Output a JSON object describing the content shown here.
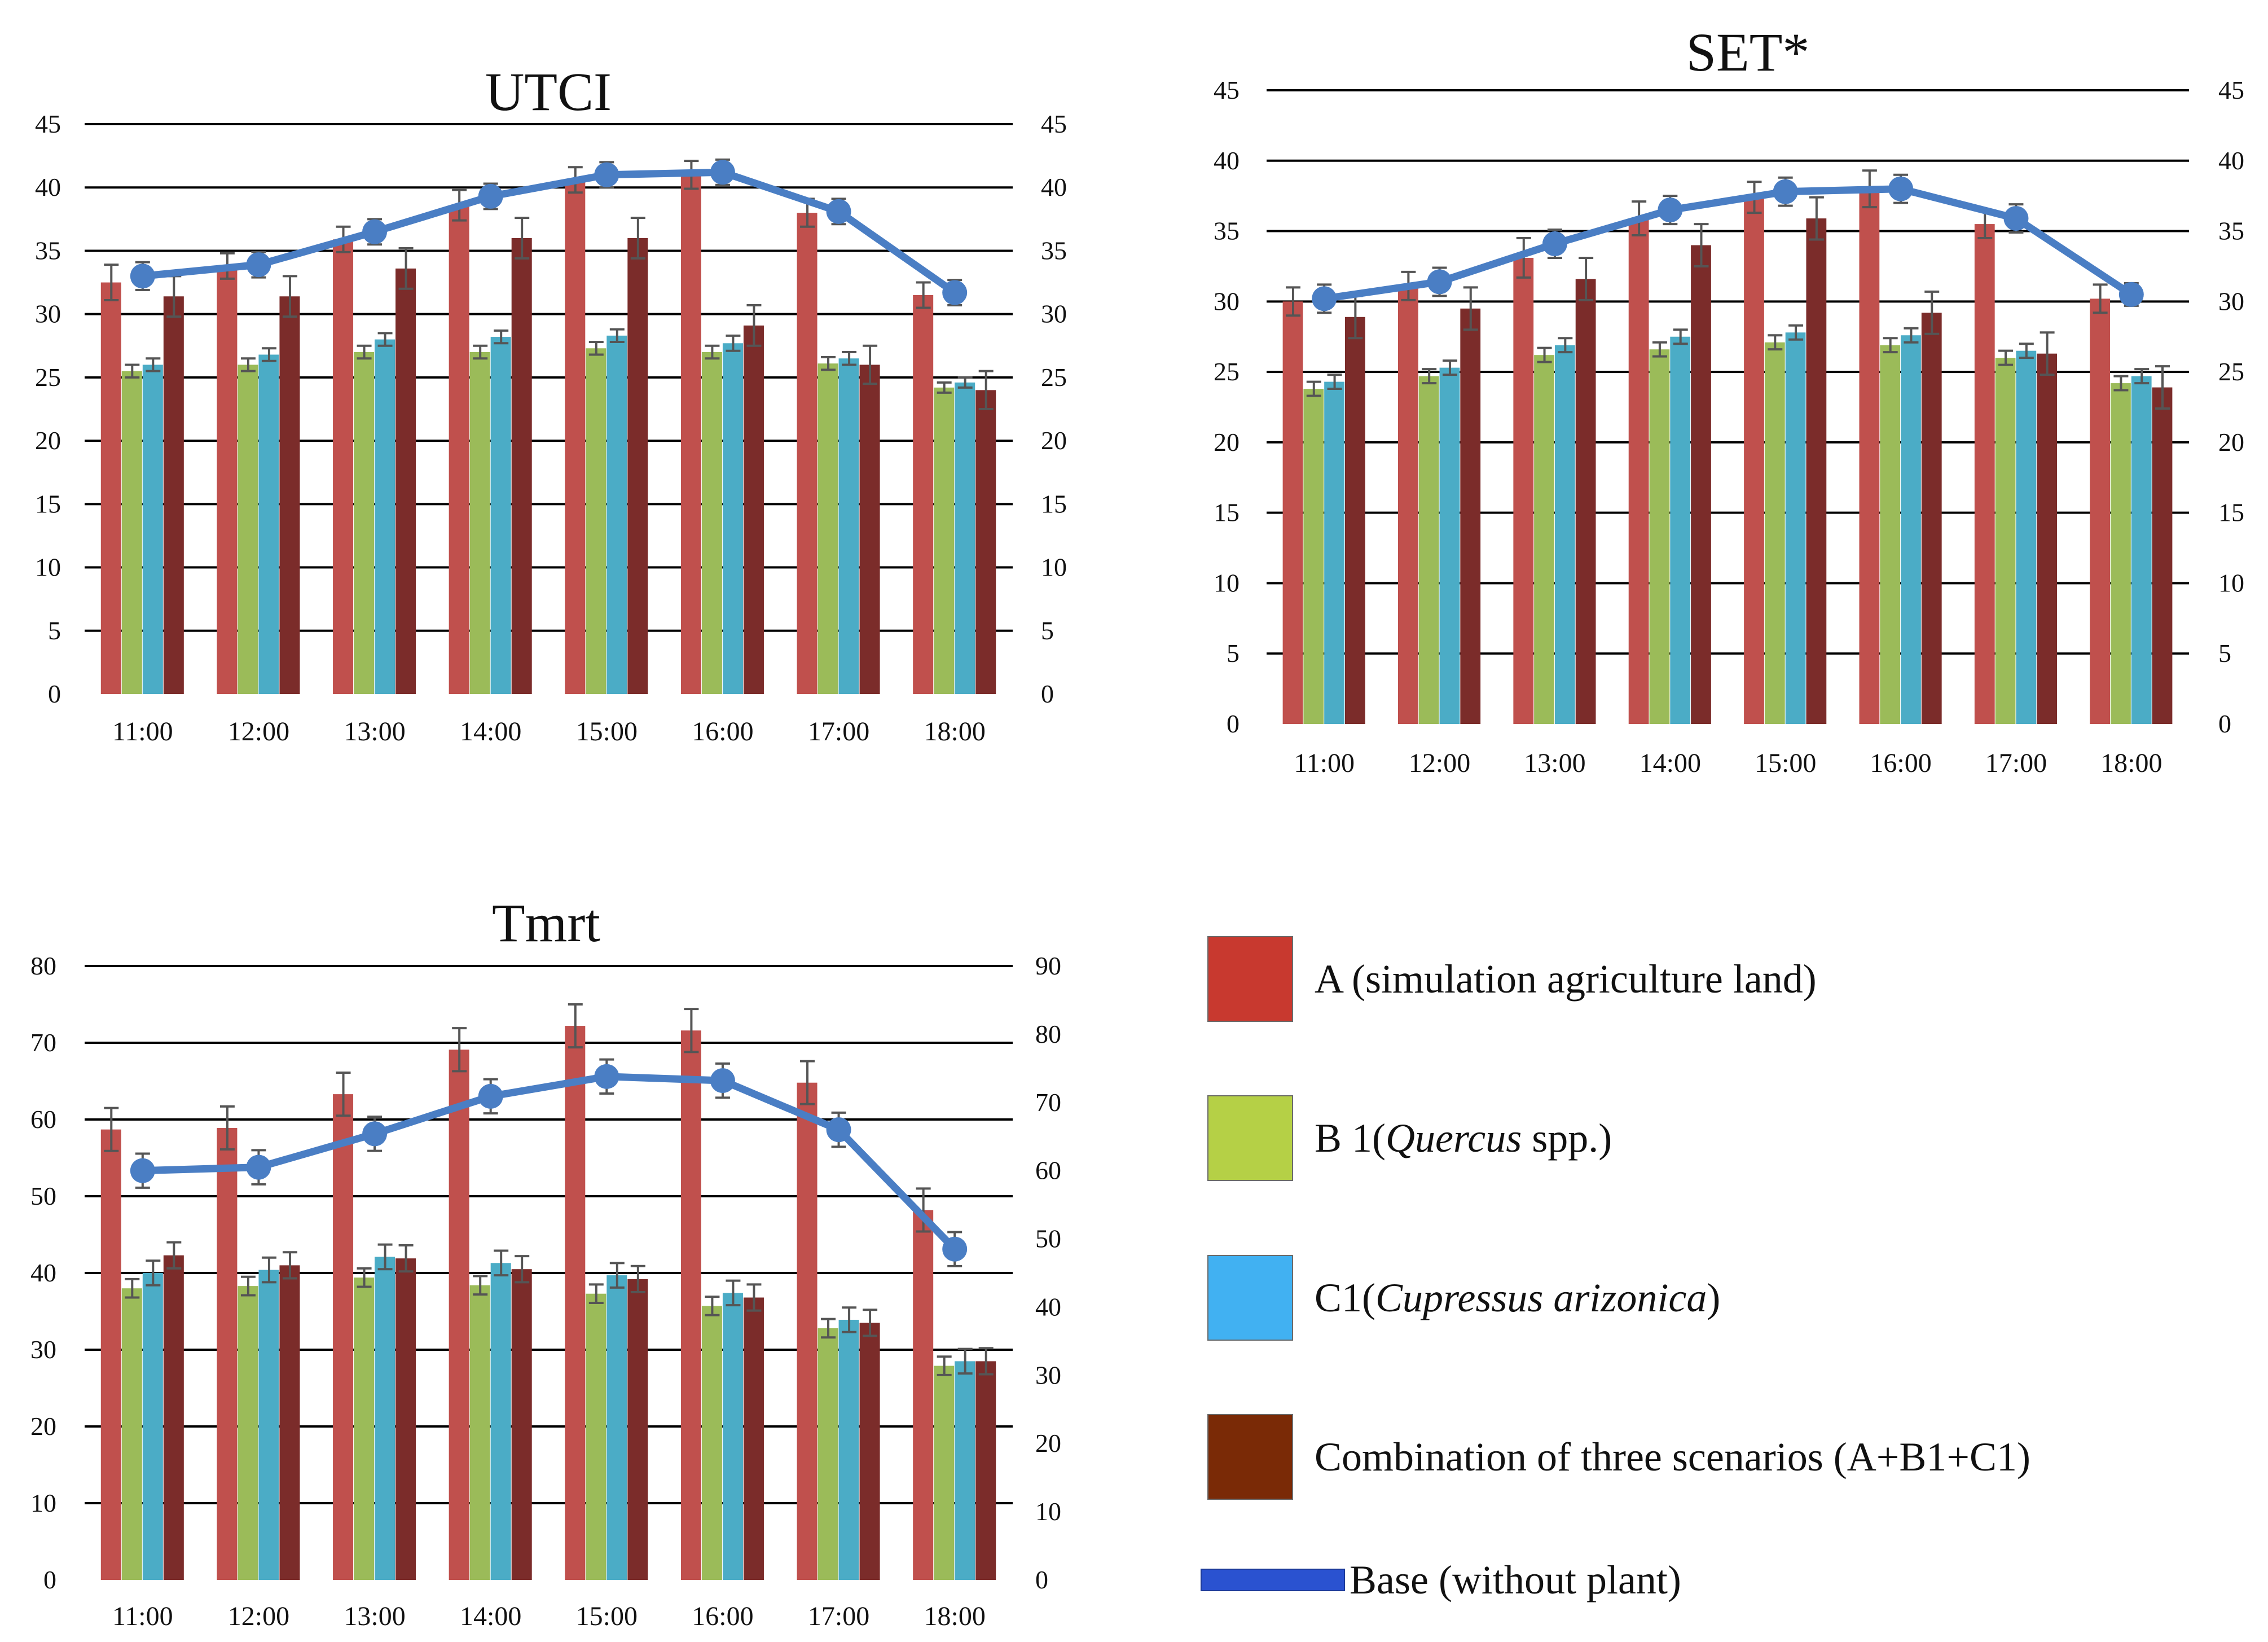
{
  "colors": {
    "A": "#c0504d",
    "B1": "#9bbb59",
    "C1": "#4bacc6",
    "comb": "#7b2c2a",
    "base": "#4a7ec4",
    "legend_A": "#c8392f",
    "legend_B1": "#b5d046",
    "legend_C1": "#41b1f2",
    "legend_comb": "#7a2a06",
    "legend_base": "#2a52d0",
    "err": "#555555",
    "grid": "#000000"
  },
  "chart_data": [
    {
      "id": "utci",
      "type": "bar",
      "title": "UTCI",
      "categories": [
        "11:00",
        "12:00",
        "13:00",
        "14:00",
        "15:00",
        "16:00",
        "17:00",
        "18:00"
      ],
      "ylim_left": [
        0,
        45
      ],
      "ylim_right": [
        0,
        45
      ],
      "yticks_left": [
        "0",
        "5",
        "10",
        "15",
        "20",
        "25",
        "30",
        "35",
        "40",
        "45"
      ],
      "yticks_right": [
        "0",
        "5",
        "10",
        "15",
        "20",
        "25",
        "30",
        "35",
        "40",
        "45"
      ],
      "series": [
        {
          "key": "A",
          "name": "A (simulation agriculture land)",
          "values": [
            32.5,
            33.8,
            35.9,
            38.6,
            40.6,
            41.0,
            38.0,
            31.5
          ],
          "err": [
            1.4,
            1.0,
            1.0,
            1.2,
            1.0,
            1.1,
            1.1,
            1.0
          ]
        },
        {
          "key": "B1",
          "name": "B 1(Quercus spp.)",
          "values": [
            25.5,
            26.0,
            27.0,
            27.0,
            27.3,
            27.0,
            26.1,
            24.2
          ],
          "err": [
            0.5,
            0.5,
            0.5,
            0.5,
            0.5,
            0.5,
            0.5,
            0.4
          ]
        },
        {
          "key": "C1",
          "name": "C1(Cupressus arizonica)",
          "values": [
            26.0,
            26.8,
            28.0,
            28.2,
            28.3,
            27.7,
            26.5,
            24.6
          ],
          "err": [
            0.5,
            0.5,
            0.5,
            0.5,
            0.5,
            0.6,
            0.5,
            0.4
          ]
        },
        {
          "key": "comb",
          "name": "Combination of three scenarios (A+B1+C1)",
          "values": [
            31.4,
            31.4,
            33.6,
            36.0,
            36.0,
            29.1,
            26.0,
            24.0
          ],
          "err": [
            1.6,
            1.6,
            1.6,
            1.6,
            1.6,
            1.6,
            1.5,
            1.5
          ]
        }
      ],
      "line": {
        "key": "base",
        "name": "Base (without plant)",
        "values": [
          33.0,
          33.9,
          36.5,
          39.3,
          41.0,
          41.2,
          38.1,
          31.7
        ],
        "err": [
          1.1,
          1.0,
          1.0,
          1.0,
          1.0,
          1.0,
          1.0,
          1.0
        ]
      }
    },
    {
      "id": "set",
      "type": "bar",
      "title": "SET*",
      "categories": [
        "11:00",
        "12:00",
        "13:00",
        "14:00",
        "15:00",
        "16:00",
        "17:00",
        "18:00"
      ],
      "ylim_left": [
        0,
        45
      ],
      "ylim_right": [
        0,
        45
      ],
      "yticks_left": [
        "0",
        "5",
        "10",
        "15",
        "20",
        "25",
        "30",
        "35",
        "40",
        "45"
      ],
      "yticks_right": [
        "0",
        "5",
        "10",
        "15",
        "20",
        "25",
        "30",
        "35",
        "40",
        "45"
      ],
      "series": [
        {
          "key": "A",
          "name": "A (simulation agriculture land)",
          "values": [
            30.0,
            31.1,
            33.1,
            35.9,
            37.4,
            38.0,
            35.5,
            30.2
          ],
          "err": [
            1.0,
            1.0,
            1.4,
            1.2,
            1.1,
            1.3,
            1.0,
            1.0
          ]
        },
        {
          "key": "B1",
          "name": "B 1(Quercus spp.)",
          "values": [
            23.8,
            24.7,
            26.2,
            26.6,
            27.1,
            26.9,
            26.0,
            24.2
          ],
          "err": [
            0.5,
            0.5,
            0.5,
            0.5,
            0.5,
            0.5,
            0.5,
            0.5
          ]
        },
        {
          "key": "C1",
          "name": "C1(Cupressus arizonica)",
          "values": [
            24.3,
            25.3,
            26.9,
            27.5,
            27.8,
            27.6,
            26.5,
            24.7
          ],
          "err": [
            0.5,
            0.5,
            0.5,
            0.5,
            0.5,
            0.5,
            0.5,
            0.5
          ]
        },
        {
          "key": "comb",
          "name": "Combination of three scenarios (A+B1+C1)",
          "values": [
            28.9,
            29.5,
            31.6,
            34.0,
            35.9,
            29.2,
            26.3,
            23.9
          ],
          "err": [
            1.5,
            1.5,
            1.5,
            1.5,
            1.5,
            1.5,
            1.5,
            1.5
          ]
        }
      ],
      "line": {
        "key": "base",
        "name": "Base (without plant)",
        "values": [
          30.2,
          31.4,
          34.1,
          36.5,
          37.8,
          38.0,
          35.9,
          30.5
        ],
        "err": [
          1.0,
          1.0,
          1.0,
          1.0,
          1.0,
          1.0,
          1.0,
          0.8
        ]
      }
    },
    {
      "id": "tmrt",
      "type": "bar",
      "title": "Tmrt",
      "categories": [
        "11:00",
        "12:00",
        "13:00",
        "14:00",
        "15:00",
        "16:00",
        "17:00",
        "18:00"
      ],
      "ylim_left": [
        0,
        80
      ],
      "ylim_right": [
        0,
        90
      ],
      "yticks_left": [
        "0",
        "10",
        "20",
        "30",
        "40",
        "50",
        "60",
        "70",
        "80"
      ],
      "yticks_right": [
        "0",
        "10",
        "20",
        "30",
        "40",
        "50",
        "60",
        "70",
        "80",
        "90"
      ],
      "series": [
        {
          "key": "A",
          "name": "A (simulation agriculture land)",
          "values": [
            58.7,
            58.9,
            63.3,
            69.1,
            72.2,
            71.6,
            64.8,
            48.2
          ],
          "err": [
            2.8,
            2.8,
            2.8,
            2.8,
            2.8,
            2.8,
            2.8,
            2.8
          ]
        },
        {
          "key": "B1",
          "name": "B 1(Quercus spp.)",
          "values": [
            38.0,
            38.3,
            39.4,
            38.4,
            37.3,
            35.7,
            32.8,
            27.9
          ],
          "err": [
            1.2,
            1.2,
            1.2,
            1.2,
            1.2,
            1.2,
            1.2,
            1.2
          ]
        },
        {
          "key": "C1",
          "name": "C1(Cupressus arizonica)",
          "values": [
            40.0,
            40.4,
            42.1,
            41.3,
            39.7,
            37.4,
            33.9,
            28.5
          ],
          "err": [
            1.6,
            1.6,
            1.6,
            1.6,
            1.6,
            1.6,
            1.6,
            1.6
          ]
        },
        {
          "key": "comb",
          "name": "Combination of three scenarios (A+B1+C1)",
          "values": [
            42.3,
            41.0,
            41.9,
            40.5,
            39.2,
            36.8,
            33.5,
            28.5
          ],
          "err": [
            1.7,
            1.7,
            1.7,
            1.7,
            1.7,
            1.7,
            1.7,
            1.7
          ]
        }
      ],
      "line": {
        "key": "base",
        "name": "Base (without plant)",
        "values": [
          60.0,
          60.5,
          65.4,
          70.9,
          73.8,
          73.2,
          66.0,
          48.5
        ],
        "err": [
          2.5,
          2.5,
          2.5,
          2.5,
          2.5,
          2.5,
          2.5,
          2.5
        ]
      }
    }
  ],
  "legend": {
    "a_label": "A (simulation agriculture land)",
    "b1_prefix": "B 1(",
    "b1_italic": "Quercus",
    "b1_suffix": " spp.)",
    "c1_prefix": "C1(",
    "c1_italic": "Cupressus arizonica",
    "c1_suffix": ")",
    "comb_label": "Combination of three scenarios (A+B1+C1)",
    "base_label": "Base (without plant)"
  }
}
